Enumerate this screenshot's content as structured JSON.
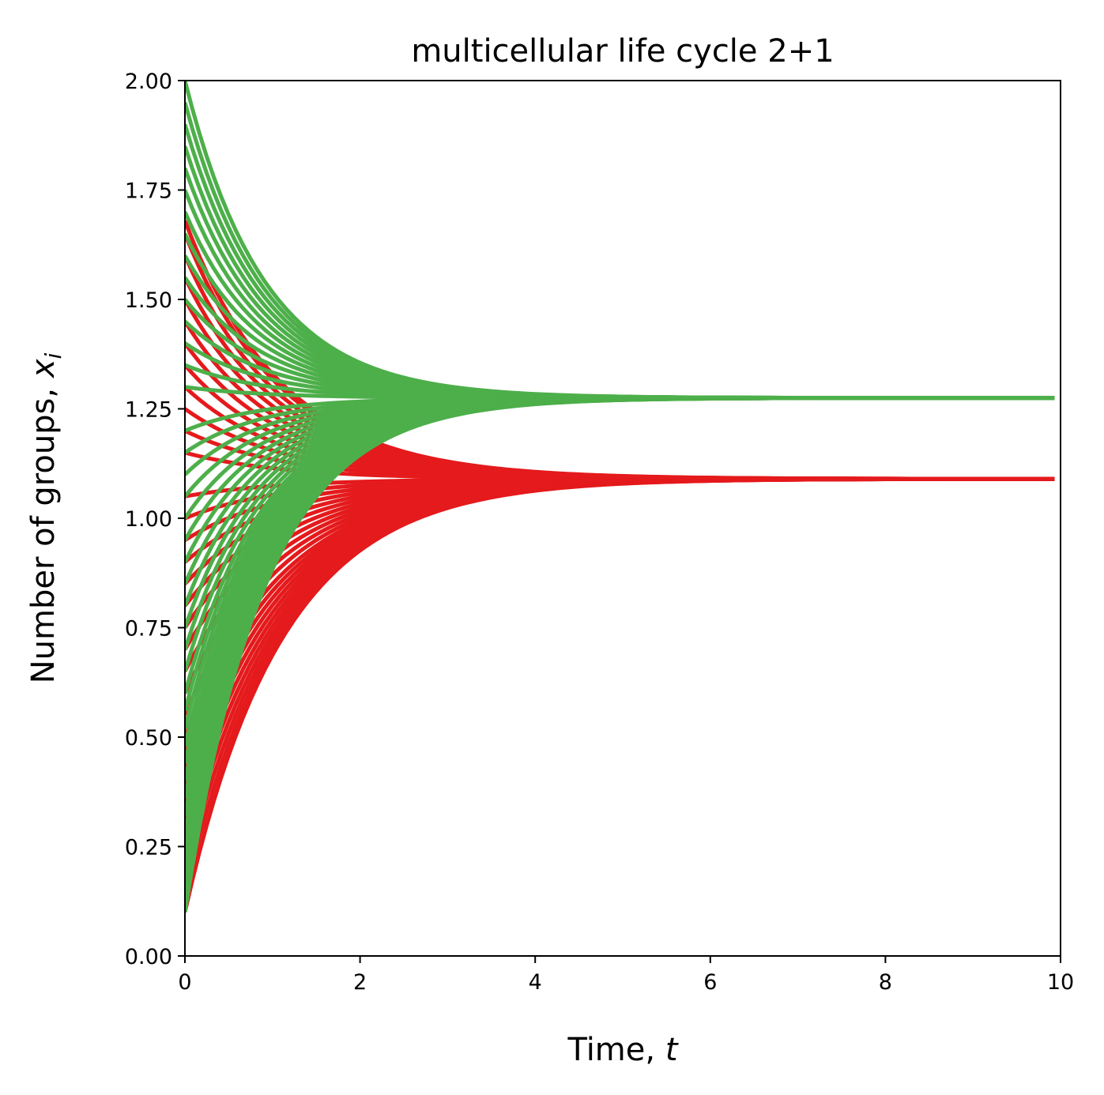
{
  "chart_data": {
    "type": "line",
    "title": "multicellular life cycle 2+1",
    "xlabel": "Time, ",
    "xlabel_var": "t",
    "ylabel": "Number of groups, ",
    "ylabel_var": "x",
    "ylabel_sub": "i",
    "xlim": [
      0,
      10
    ],
    "ylim": [
      0,
      2
    ],
    "xticks": [
      0,
      2,
      4,
      6,
      8,
      10
    ],
    "xtick_labels": [
      "0",
      "2",
      "4",
      "6",
      "8",
      "10"
    ],
    "yticks": [
      0,
      0.25,
      0.5,
      0.75,
      1.0,
      1.25,
      1.5,
      1.75,
      2.0
    ],
    "ytick_labels": [
      "0.00",
      "0.25",
      "0.50",
      "0.75",
      "1.00",
      "1.25",
      "1.50",
      "1.75",
      "2.00"
    ],
    "grid": false,
    "legend": false,
    "t_end": 9.93,
    "series": [
      {
        "color": "#e41a1c",
        "equilibrium": 1.09,
        "rate": 0.9,
        "x0": [
          0.1,
          0.14,
          0.18,
          0.22,
          0.26,
          0.3,
          0.34,
          0.38,
          0.42,
          0.46,
          0.5,
          0.55,
          0.6,
          0.65,
          0.7,
          0.75,
          0.8,
          0.85,
          0.9,
          0.95,
          1.0,
          1.05,
          1.15,
          1.2,
          1.25,
          1.3,
          1.35,
          1.4,
          1.45,
          1.5,
          1.55,
          1.6,
          1.65,
          1.68
        ]
      },
      {
        "color": "#4daf4a",
        "equilibrium": 1.275,
        "rate": 1.1,
        "x0": [
          0.1,
          0.13,
          0.16,
          0.2,
          0.24,
          0.28,
          0.32,
          0.36,
          0.4,
          0.44,
          0.48,
          0.52,
          0.56,
          0.6,
          0.65,
          0.7,
          0.75,
          0.8,
          0.85,
          0.9,
          0.95,
          1.0,
          1.05,
          1.1,
          1.15,
          1.2,
          1.3,
          1.35,
          1.4,
          1.45,
          1.5,
          1.55,
          1.6,
          1.65,
          1.7,
          1.75,
          1.8,
          1.85,
          1.9,
          1.95,
          2.0
        ]
      }
    ]
  }
}
